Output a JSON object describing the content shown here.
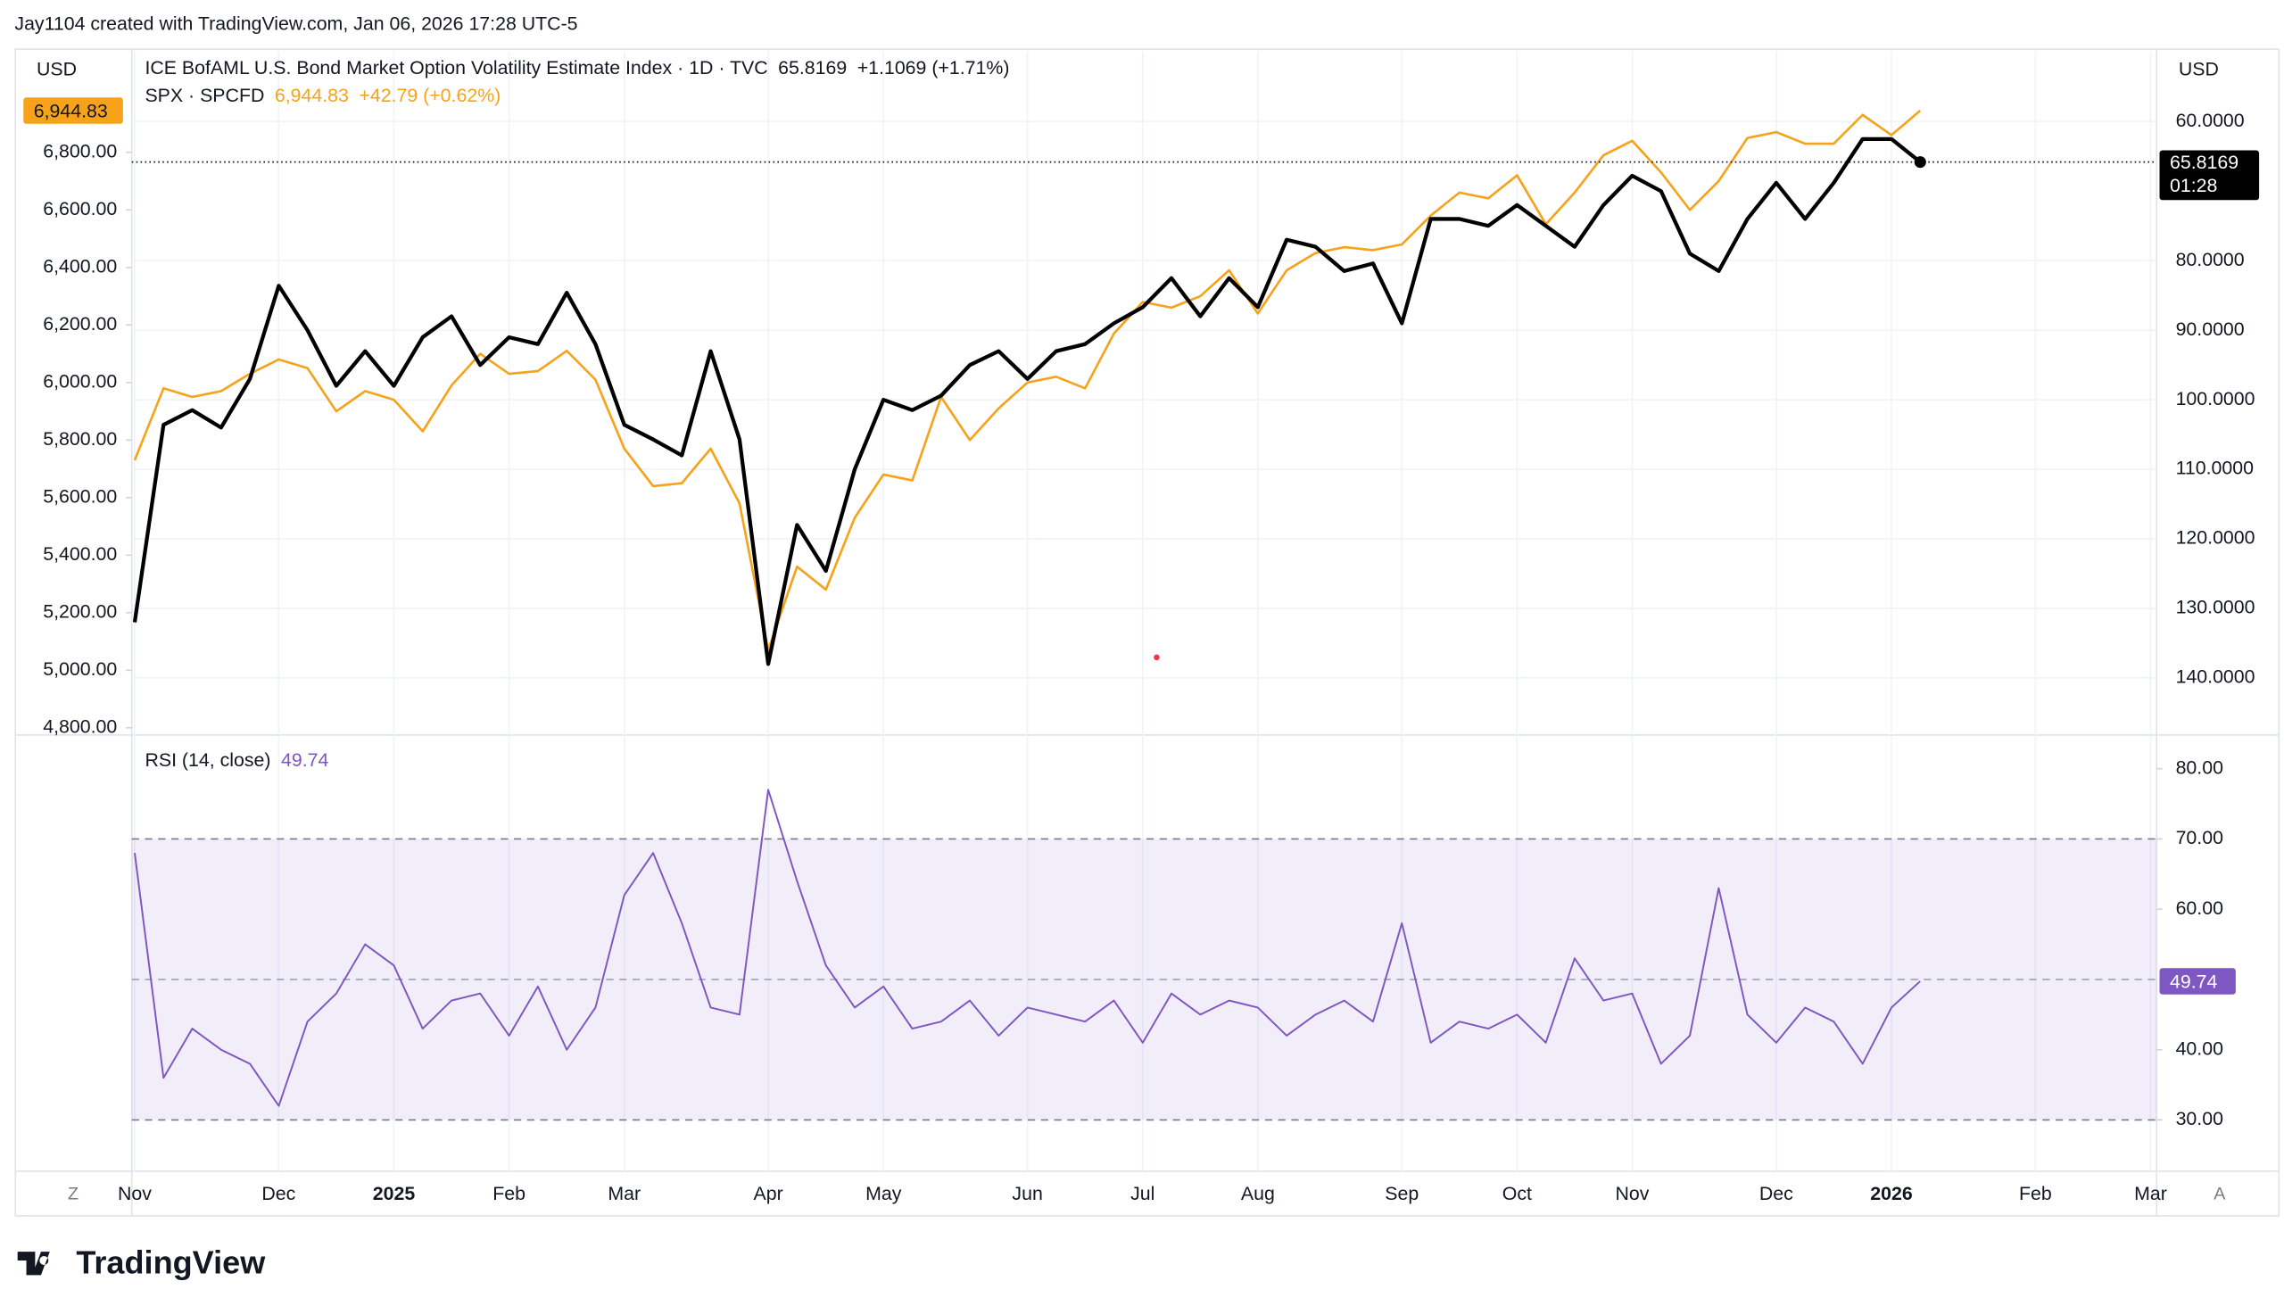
{
  "header": {
    "text": "Jay1104 created with TradingView.com, Jan 06, 2026 17:28 UTC-5"
  },
  "logo": {
    "text": "TradingView"
  },
  "buttons": {
    "left": "Z",
    "right": "A"
  },
  "currency": {
    "left": "USD",
    "right": "USD"
  },
  "countdown": "01:28",
  "chart_data": [
    {
      "type": "line",
      "categories": [
        "Nov",
        null,
        null,
        null,
        null,
        "Dec",
        null,
        null,
        null,
        "2025",
        null,
        null,
        null,
        "Feb",
        null,
        null,
        null,
        "Mar",
        null,
        null,
        null,
        null,
        "Apr",
        null,
        null,
        null,
        "May",
        null,
        null,
        null,
        null,
        "Jun",
        null,
        null,
        null,
        "Jul",
        null,
        null,
        null,
        "Aug",
        null,
        null,
        null,
        null,
        "Sep",
        null,
        null,
        null,
        "Oct",
        null,
        null,
        null,
        "Nov",
        null,
        null,
        null,
        null,
        "Dec",
        null,
        null,
        null,
        "2026",
        null,
        null,
        null,
        null,
        "Feb",
        null,
        null,
        null,
        "Mar"
      ],
      "ylim": [
        4775,
        7151
      ],
      "yticks": [
        {
          "value": 4800,
          "label": "4,800.00"
        },
        {
          "value": 5000,
          "label": "5,000.00"
        },
        {
          "value": 5200,
          "label": "5,200.00"
        },
        {
          "value": 5400,
          "label": "5,400.00"
        },
        {
          "value": 5600,
          "label": "5,600.00"
        },
        {
          "value": 5800,
          "label": "5,800.00"
        },
        {
          "value": 6000,
          "label": "6,000.00"
        },
        {
          "value": 6200,
          "label": "6,200.00"
        },
        {
          "value": 6400,
          "label": "6,400.00"
        },
        {
          "value": 6600,
          "label": "6,600.00"
        },
        {
          "value": 6800,
          "label": "6,800.00"
        }
      ],
      "y2lim": [
        148.2,
        49.9
      ],
      "y2ticks": [
        {
          "value": 60,
          "label": "60.0000"
        },
        {
          "value": 80,
          "label": "80.0000"
        },
        {
          "value": 90,
          "label": "90.0000"
        },
        {
          "value": 100,
          "label": "100.0000"
        },
        {
          "value": 110,
          "label": "110.0000"
        },
        {
          "value": 120,
          "label": "120.0000"
        },
        {
          "value": 130,
          "label": "130.0000"
        },
        {
          "value": 140,
          "label": "140.0000"
        }
      ],
      "grid": true,
      "series": [
        {
          "name": "ICE BofAML U.S. Bond Market Option Volatility Estimate Index · 1D · TVC",
          "axis": "y2",
          "color": "#000000",
          "last_label": "65.8169",
          "change_label": "+1.1069 (+1.71%)",
          "values": [
            132,
            103.6,
            101.5,
            104,
            97,
            83.6,
            90,
            98,
            93,
            98,
            91,
            88,
            95,
            91,
            92,
            84.6,
            92,
            103.6,
            105.7,
            108,
            93,
            105.7,
            138,
            118,
            124.6,
            110,
            100,
            101.5,
            99.4,
            95,
            93,
            97,
            93,
            92,
            89,
            86.7,
            82.5,
            88,
            82.5,
            86.7,
            77,
            78,
            81.5,
            80.4,
            89,
            74,
            74,
            75,
            72,
            75,
            78,
            72,
            67.8,
            70,
            79,
            81.5,
            74,
            68.8,
            74,
            68.8,
            62.5,
            62.5,
            65.8169,
            null,
            null,
            null,
            null,
            null,
            null,
            null,
            null
          ]
        },
        {
          "name": "SPX · SPCFD",
          "axis": "y",
          "color": "#f7a21b",
          "last_label": "6,944.83",
          "change_label": "+42.79 (+0.62%)",
          "values": [
            5730,
            5980,
            5950,
            5970,
            6030,
            6080,
            6050,
            5900,
            5970,
            5940,
            5830,
            5990,
            6100,
            6030,
            6040,
            6110,
            6010,
            5770,
            5640,
            5650,
            5770,
            5580,
            5070,
            5360,
            5280,
            5530,
            5680,
            5660,
            5950,
            5800,
            5910,
            6000,
            6020,
            5980,
            6170,
            6280,
            6260,
            6300,
            6390,
            6240,
            6390,
            6450,
            6470,
            6460,
            6480,
            6580,
            6660,
            6640,
            6720,
            6550,
            6660,
            6790,
            6840,
            6730,
            6600,
            6700,
            6850,
            6870,
            6830,
            6830,
            6930,
            6860,
            6944.83,
            null,
            null,
            null,
            null,
            null,
            null,
            null,
            null
          ]
        }
      ]
    },
    {
      "type": "line",
      "title": "RSI (14, close)",
      "ylim": [
        22.7,
        84.8
      ],
      "yticks": [
        {
          "value": 30,
          "label": "30.00"
        },
        {
          "value": 40,
          "label": "40.00"
        },
        {
          "value": 60,
          "label": "60.00"
        },
        {
          "value": 70,
          "label": "70.00"
        },
        {
          "value": 80,
          "label": "80.00"
        }
      ],
      "band": [
        30,
        70
      ],
      "midline": 50,
      "series": [
        {
          "name": "RSI",
          "color": "#7e57c2",
          "last_label": "49.74",
          "values": [
            68,
            36,
            43,
            40,
            38,
            32,
            44,
            48,
            55,
            52,
            43,
            47,
            48,
            42,
            49,
            40,
            46,
            62,
            68,
            58,
            46,
            45,
            77,
            64,
            52,
            46,
            49,
            43,
            44,
            47,
            42,
            46,
            45,
            44,
            47,
            41,
            48,
            45,
            47,
            46,
            42,
            45,
            47,
            44,
            58,
            41,
            44,
            43,
            45,
            41,
            53,
            47,
            48,
            38,
            42,
            63,
            45,
            41,
            46,
            44,
            38,
            46,
            49.74,
            null,
            null,
            null,
            null,
            null,
            null,
            null,
            null
          ]
        }
      ]
    }
  ]
}
